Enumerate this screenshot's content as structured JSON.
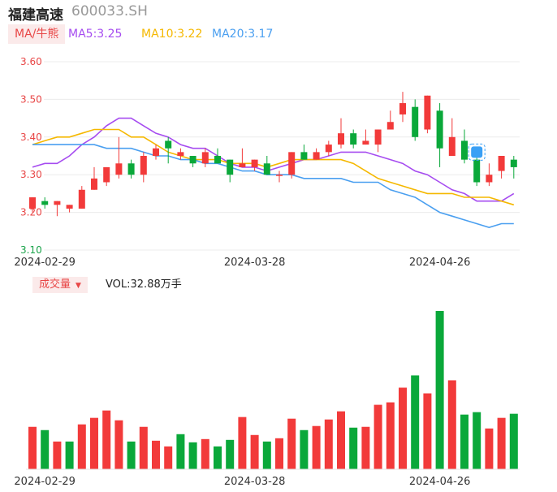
{
  "header": {
    "name": "福建高速",
    "code": "600033.SH"
  },
  "ma_legend": {
    "selector": "MA/牛熊",
    "items": [
      {
        "label": "MA5:3.25",
        "color": "#a64cf0"
      },
      {
        "label": "MA10:3.22",
        "color": "#f5b800"
      },
      {
        "label": "MA20:3.17",
        "color": "#4a9ff0"
      }
    ]
  },
  "volume_legend": {
    "selector": "成交量",
    "value": "VOL:32.88万手"
  },
  "colors": {
    "up": "#f23a3a",
    "down": "#0aa83a"
  },
  "chart_data": [
    {
      "type": "candlestick",
      "title": "",
      "ylim": [
        3.1,
        3.6
      ],
      "yticks": [
        "3.60",
        "3.50",
        "3.40",
        "3.30",
        "3.20",
        "3.10"
      ],
      "xticks": [
        {
          "index": 1,
          "label": "2024-02-29"
        },
        {
          "index": 18,
          "label": "2024-03-28"
        },
        {
          "index": 33,
          "label": "2024-04-26"
        }
      ],
      "candles": [
        {
          "o": 3.21,
          "h": 3.24,
          "l": 3.2,
          "c": 3.24
        },
        {
          "o": 3.23,
          "h": 3.24,
          "l": 3.21,
          "c": 3.22
        },
        {
          "o": 3.22,
          "h": 3.23,
          "l": 3.19,
          "c": 3.23
        },
        {
          "o": 3.21,
          "h": 3.22,
          "l": 3.2,
          "c": 3.22
        },
        {
          "o": 3.21,
          "h": 3.27,
          "l": 3.21,
          "c": 3.26
        },
        {
          "o": 3.26,
          "h": 3.32,
          "l": 3.26,
          "c": 3.29
        },
        {
          "o": 3.28,
          "h": 3.32,
          "l": 3.27,
          "c": 3.32
        },
        {
          "o": 3.3,
          "h": 3.4,
          "l": 3.29,
          "c": 3.33
        },
        {
          "o": 3.33,
          "h": 3.34,
          "l": 3.29,
          "c": 3.3
        },
        {
          "o": 3.3,
          "h": 3.36,
          "l": 3.28,
          "c": 3.35
        },
        {
          "o": 3.35,
          "h": 3.38,
          "l": 3.34,
          "c": 3.37
        },
        {
          "o": 3.39,
          "h": 3.4,
          "l": 3.33,
          "c": 3.37
        },
        {
          "o": 3.35,
          "h": 3.37,
          "l": 3.34,
          "c": 3.36
        },
        {
          "o": 3.35,
          "h": 3.35,
          "l": 3.32,
          "c": 3.33
        },
        {
          "o": 3.33,
          "h": 3.37,
          "l": 3.32,
          "c": 3.36
        },
        {
          "o": 3.35,
          "h": 3.37,
          "l": 3.33,
          "c": 3.33
        },
        {
          "o": 3.34,
          "h": 3.34,
          "l": 3.28,
          "c": 3.3
        },
        {
          "o": 3.32,
          "h": 3.37,
          "l": 3.32,
          "c": 3.33
        },
        {
          "o": 3.32,
          "h": 3.34,
          "l": 3.31,
          "c": 3.34
        },
        {
          "o": 3.33,
          "h": 3.35,
          "l": 3.3,
          "c": 3.3
        },
        {
          "o": 3.3,
          "h": 3.31,
          "l": 3.28,
          "c": 3.3
        },
        {
          "o": 3.3,
          "h": 3.36,
          "l": 3.29,
          "c": 3.36
        },
        {
          "o": 3.36,
          "h": 3.38,
          "l": 3.34,
          "c": 3.34
        },
        {
          "o": 3.34,
          "h": 3.37,
          "l": 3.34,
          "c": 3.36
        },
        {
          "o": 3.36,
          "h": 3.39,
          "l": 3.35,
          "c": 3.38
        },
        {
          "o": 3.38,
          "h": 3.45,
          "l": 3.37,
          "c": 3.41
        },
        {
          "o": 3.41,
          "h": 3.42,
          "l": 3.37,
          "c": 3.38
        },
        {
          "o": 3.38,
          "h": 3.42,
          "l": 3.38,
          "c": 3.39
        },
        {
          "o": 3.38,
          "h": 3.42,
          "l": 3.36,
          "c": 3.42
        },
        {
          "o": 3.42,
          "h": 3.47,
          "l": 3.42,
          "c": 3.44
        },
        {
          "o": 3.46,
          "h": 3.52,
          "l": 3.44,
          "c": 3.49
        },
        {
          "o": 3.48,
          "h": 3.5,
          "l": 3.39,
          "c": 3.4
        },
        {
          "o": 3.42,
          "h": 3.51,
          "l": 3.41,
          "c": 3.51
        },
        {
          "o": 3.47,
          "h": 3.49,
          "l": 3.32,
          "c": 3.37
        },
        {
          "o": 3.35,
          "h": 3.45,
          "l": 3.35,
          "c": 3.4
        },
        {
          "o": 3.39,
          "h": 3.42,
          "l": 3.33,
          "c": 3.34
        },
        {
          "o": 3.34,
          "h": 3.35,
          "l": 3.27,
          "c": 3.28
        },
        {
          "o": 3.28,
          "h": 3.33,
          "l": 3.27,
          "c": 3.3
        },
        {
          "o": 3.31,
          "h": 3.35,
          "l": 3.29,
          "c": 3.35
        },
        {
          "o": 3.34,
          "h": 3.35,
          "l": 3.29,
          "c": 3.32
        }
      ],
      "series": [
        {
          "name": "MA5",
          "color": "#a64cf0",
          "values": [
            3.32,
            3.33,
            3.33,
            3.35,
            3.38,
            3.4,
            3.43,
            3.45,
            3.45,
            3.43,
            3.41,
            3.4,
            3.38,
            3.37,
            3.37,
            3.35,
            3.33,
            3.32,
            3.32,
            3.31,
            3.32,
            3.33,
            3.34,
            3.34,
            3.35,
            3.36,
            3.36,
            3.36,
            3.35,
            3.34,
            3.33,
            3.31,
            3.3,
            3.28,
            3.26,
            3.25,
            3.23,
            3.23,
            3.23,
            3.25
          ]
        },
        {
          "name": "MA10",
          "color": "#f5b800",
          "values": [
            3.38,
            3.39,
            3.4,
            3.4,
            3.41,
            3.42,
            3.42,
            3.42,
            3.4,
            3.4,
            3.38,
            3.36,
            3.35,
            3.34,
            3.34,
            3.34,
            3.33,
            3.33,
            3.33,
            3.32,
            3.33,
            3.34,
            3.34,
            3.34,
            3.34,
            3.34,
            3.33,
            3.31,
            3.29,
            3.28,
            3.27,
            3.26,
            3.25,
            3.25,
            3.25,
            3.24,
            3.24,
            3.24,
            3.23,
            3.22
          ]
        },
        {
          "name": "MA20",
          "color": "#4a9ff0",
          "values": [
            3.38,
            3.38,
            3.38,
            3.38,
            3.38,
            3.38,
            3.37,
            3.37,
            3.37,
            3.36,
            3.35,
            3.35,
            3.34,
            3.34,
            3.33,
            3.33,
            3.32,
            3.31,
            3.31,
            3.3,
            3.3,
            3.3,
            3.29,
            3.29,
            3.29,
            3.29,
            3.28,
            3.28,
            3.28,
            3.26,
            3.25,
            3.24,
            3.22,
            3.2,
            3.19,
            3.18,
            3.17,
            3.16,
            3.17,
            3.17
          ]
        }
      ]
    },
    {
      "type": "bar",
      "title": "",
      "series_name": "成交量",
      "xticks": [
        {
          "index": 1,
          "label": "2024-02-29"
        },
        {
          "index": 18,
          "label": "2024-03-28"
        },
        {
          "index": 33,
          "label": "2024-04-26"
        }
      ],
      "values": [
        52,
        48,
        34,
        34,
        55,
        63,
        72,
        60,
        34,
        52,
        35,
        28,
        43,
        33,
        37,
        28,
        36,
        64,
        42,
        34,
        38,
        62,
        48,
        53,
        61,
        71,
        51,
        52,
        79,
        82,
        100,
        115,
        93,
        194,
        109,
        67,
        70,
        50,
        63,
        68
      ],
      "directions": [
        "up",
        "down",
        "up",
        "down",
        "up",
        "up",
        "up",
        "up",
        "down",
        "up",
        "up",
        "up",
        "down",
        "down",
        "up",
        "down",
        "down",
        "up",
        "up",
        "down",
        "up",
        "up",
        "down",
        "up",
        "up",
        "up",
        "down",
        "up",
        "up",
        "up",
        "up",
        "down",
        "up",
        "down",
        "up",
        "down",
        "down",
        "up",
        "up",
        "down"
      ]
    }
  ]
}
